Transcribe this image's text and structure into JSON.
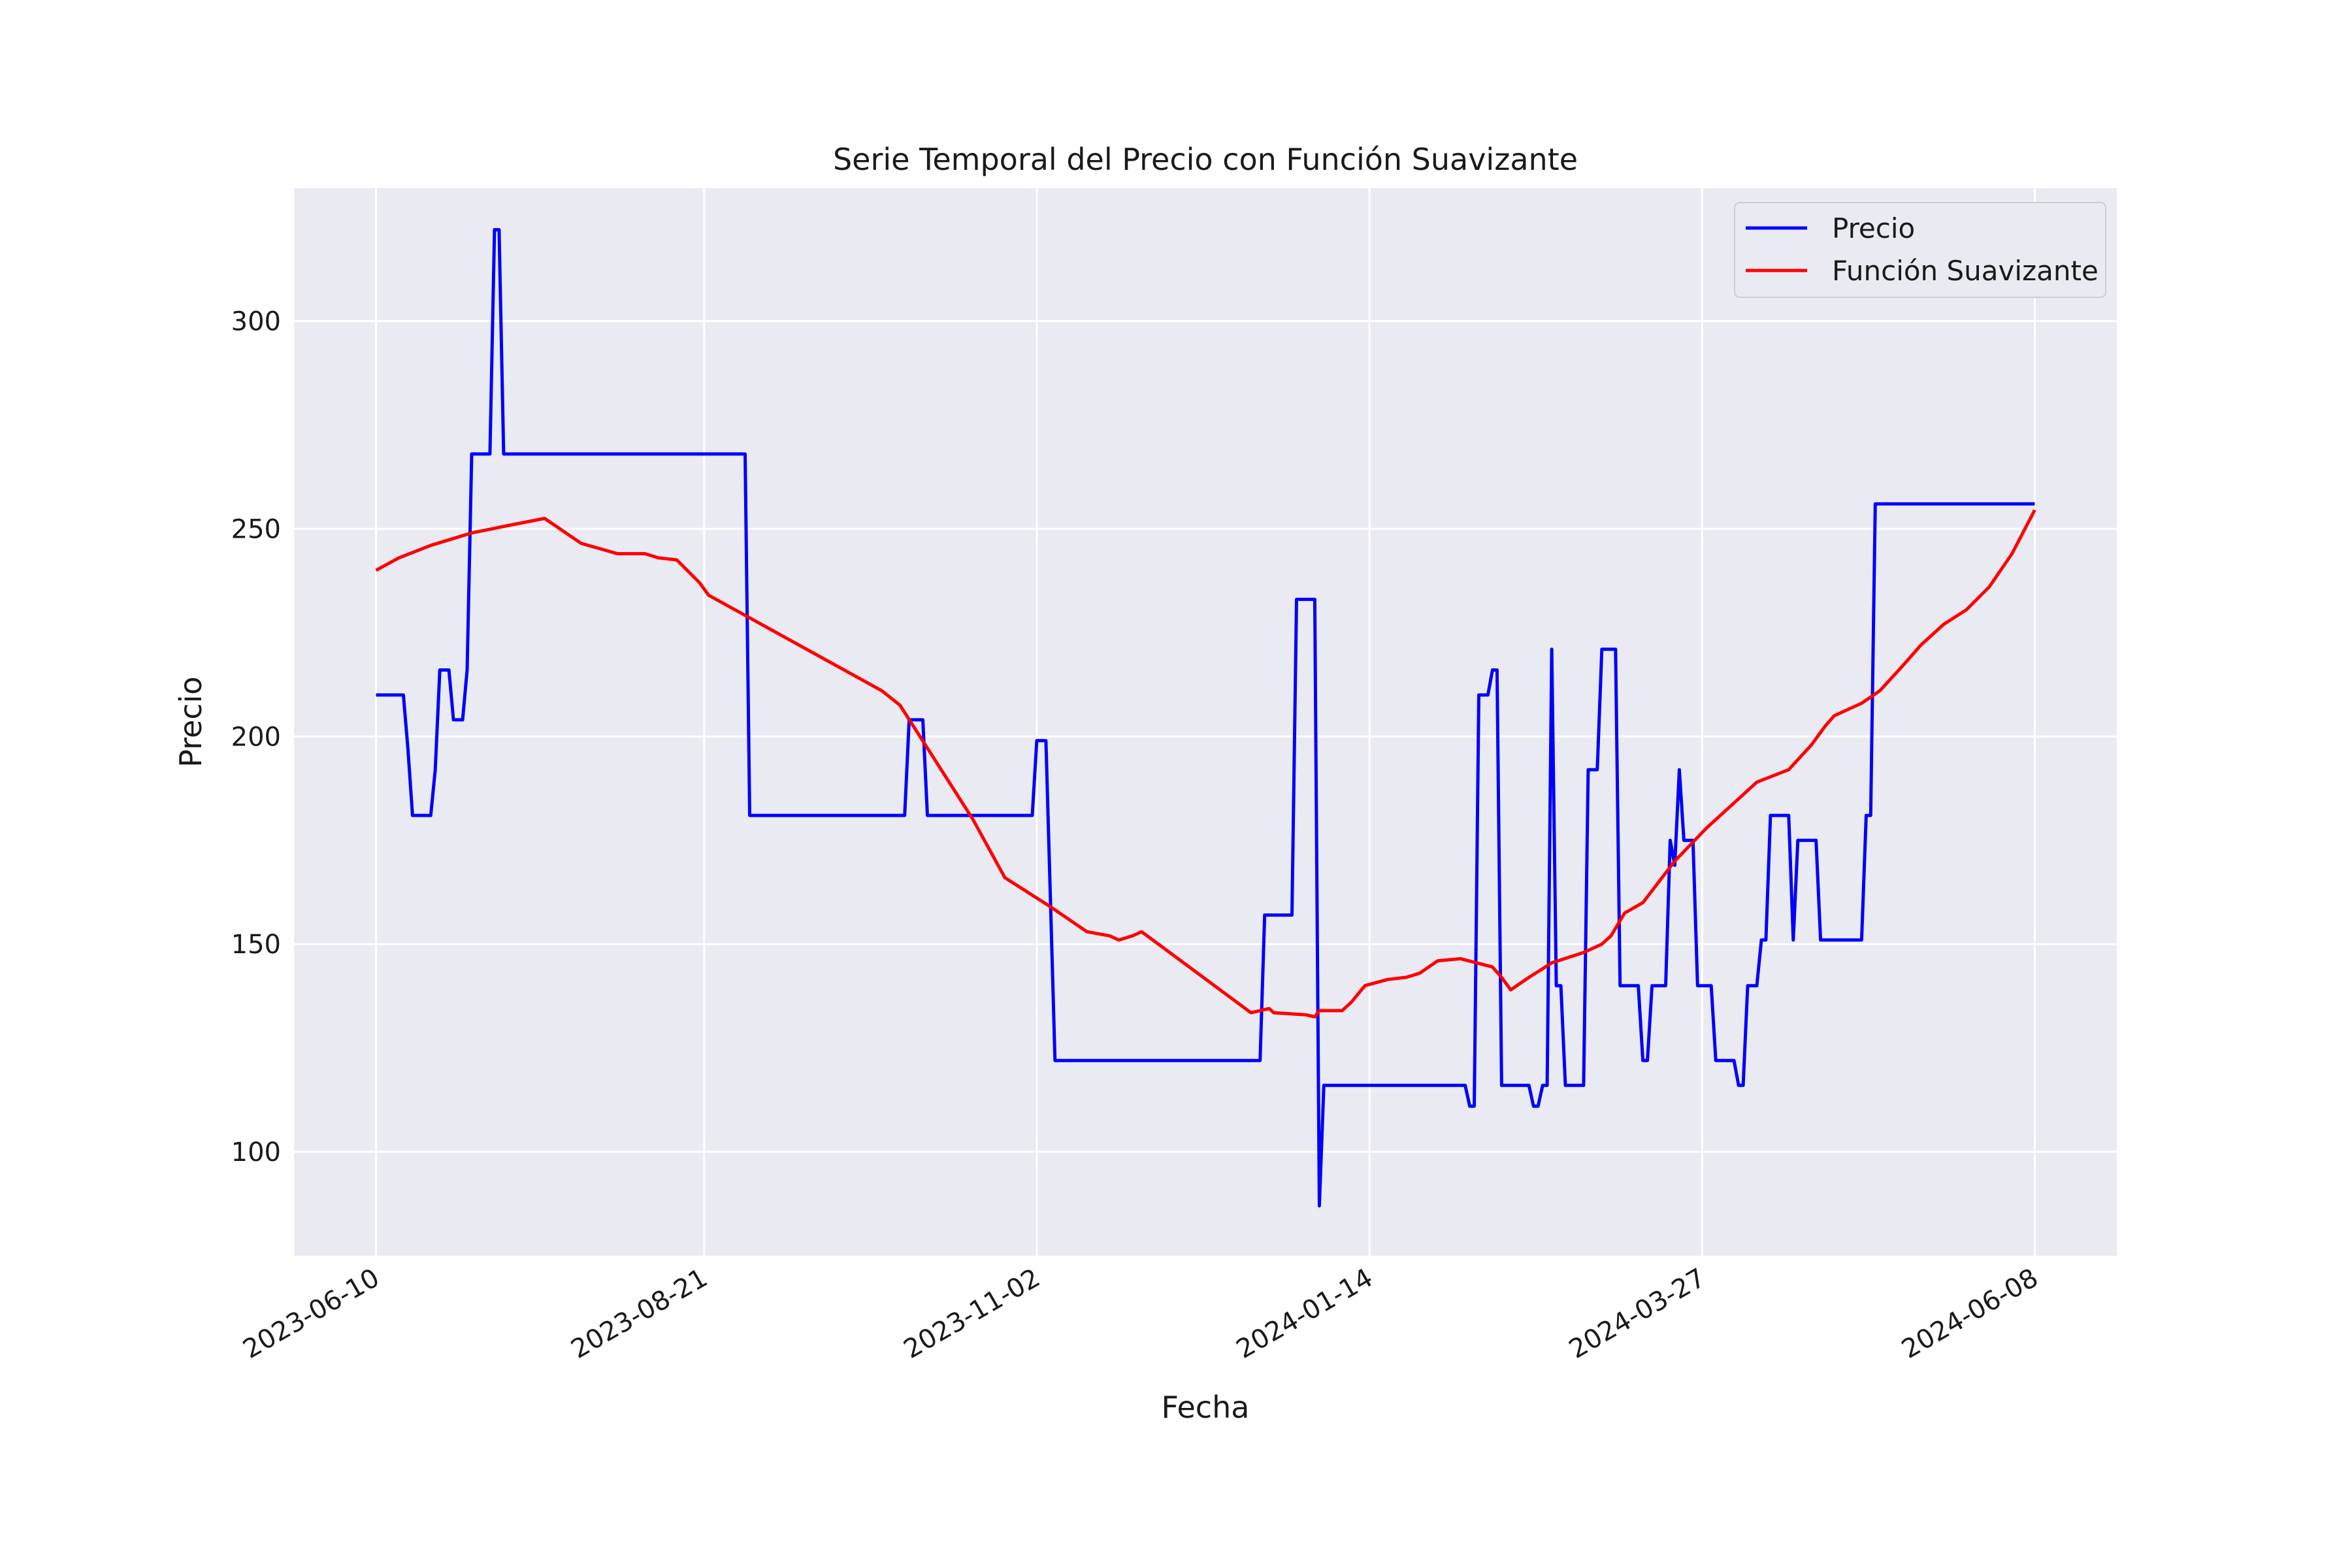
{
  "chart_data": {
    "type": "line",
    "title": "Serie Temporal del Precio con Función Suavizante",
    "xlabel": "Fecha",
    "ylabel": "Precio",
    "x_start": "2023-06-10",
    "x_end": "2024-06-08",
    "xlim": [
      "2023-05-23",
      "2024-06-26"
    ],
    "ylim": [
      75,
      332
    ],
    "x_ticks": [
      "2023-06-10",
      "2023-08-21",
      "2023-11-02",
      "2024-01-14",
      "2024-03-27",
      "2024-06-08"
    ],
    "y_ticks": [
      100,
      150,
      200,
      250,
      300
    ],
    "grid": true,
    "legend_position": "top-right",
    "series": [
      {
        "name": "Precio",
        "color": "#0000ff",
        "points": [
          [
            "2023-06-10",
            210
          ],
          [
            "2023-06-16",
            210
          ],
          [
            "2023-06-17",
            197
          ],
          [
            "2023-06-18",
            181
          ],
          [
            "2023-06-22",
            181
          ],
          [
            "2023-06-23",
            192
          ],
          [
            "2023-06-24",
            216
          ],
          [
            "2023-06-26",
            216
          ],
          [
            "2023-06-27",
            204
          ],
          [
            "2023-06-29",
            204
          ],
          [
            "2023-06-30",
            216
          ],
          [
            "2023-07-01",
            268
          ],
          [
            "2023-07-05",
            268
          ],
          [
            "2023-07-06",
            322
          ],
          [
            "2023-07-07",
            322
          ],
          [
            "2023-07-08",
            268
          ],
          [
            "2023-08-30",
            268
          ],
          [
            "2023-08-31",
            181
          ],
          [
            "2023-10-04",
            181
          ],
          [
            "2023-10-05",
            204
          ],
          [
            "2023-10-08",
            204
          ],
          [
            "2023-10-09",
            181
          ],
          [
            "2023-11-01",
            181
          ],
          [
            "2023-11-02",
            199
          ],
          [
            "2023-11-04",
            199
          ],
          [
            "2023-11-06",
            122
          ],
          [
            "2023-12-21",
            122
          ],
          [
            "2023-12-22",
            157
          ],
          [
            "2023-12-28",
            157
          ],
          [
            "2023-12-29",
            233
          ],
          [
            "2024-01-02",
            233
          ],
          [
            "2024-01-03",
            87
          ],
          [
            "2024-01-04",
            116
          ],
          [
            "2024-02-04",
            116
          ],
          [
            "2024-02-05",
            111
          ],
          [
            "2024-02-06",
            111
          ],
          [
            "2024-02-07",
            210
          ],
          [
            "2024-02-09",
            210
          ],
          [
            "2024-02-10",
            216
          ],
          [
            "2024-02-11",
            216
          ],
          [
            "2024-02-12",
            116
          ],
          [
            "2024-02-18",
            116
          ],
          [
            "2024-02-19",
            111
          ],
          [
            "2024-02-20",
            111
          ],
          [
            "2024-02-21",
            116
          ],
          [
            "2024-02-22",
            116
          ],
          [
            "2024-02-23",
            221
          ],
          [
            "2024-02-24",
            140
          ],
          [
            "2024-02-25",
            140
          ],
          [
            "2024-02-26",
            116
          ],
          [
            "2024-03-01",
            116
          ],
          [
            "2024-03-02",
            192
          ],
          [
            "2024-03-04",
            192
          ],
          [
            "2024-03-05",
            221
          ],
          [
            "2024-03-08",
            221
          ],
          [
            "2024-03-09",
            140
          ],
          [
            "2024-03-13",
            140
          ],
          [
            "2024-03-14",
            122
          ],
          [
            "2024-03-15",
            122
          ],
          [
            "2024-03-16",
            140
          ],
          [
            "2024-03-19",
            140
          ],
          [
            "2024-03-20",
            175
          ],
          [
            "2024-03-21",
            169
          ],
          [
            "2024-03-22",
            192
          ],
          [
            "2024-03-23",
            175
          ],
          [
            "2024-03-25",
            175
          ],
          [
            "2024-03-26",
            140
          ],
          [
            "2024-03-29",
            140
          ],
          [
            "2024-03-30",
            122
          ],
          [
            "2024-04-03",
            122
          ],
          [
            "2024-04-04",
            116
          ],
          [
            "2024-04-05",
            116
          ],
          [
            "2024-04-06",
            140
          ],
          [
            "2024-04-08",
            140
          ],
          [
            "2024-04-09",
            151
          ],
          [
            "2024-04-10",
            151
          ],
          [
            "2024-04-11",
            181
          ],
          [
            "2024-04-15",
            181
          ],
          [
            "2024-04-16",
            151
          ],
          [
            "2024-04-17",
            175
          ],
          [
            "2024-04-21",
            175
          ],
          [
            "2024-04-22",
            151
          ],
          [
            "2024-05-01",
            151
          ],
          [
            "2024-05-02",
            181
          ],
          [
            "2024-05-03",
            181
          ],
          [
            "2024-05-04",
            256
          ],
          [
            "2024-06-08",
            256
          ]
        ]
      },
      {
        "name": "Función Suavizante",
        "color": "#ff0000",
        "points": [
          [
            "2023-06-10",
            240
          ],
          [
            "2023-06-15",
            243
          ],
          [
            "2023-06-22",
            246
          ],
          [
            "2023-07-01",
            249
          ],
          [
            "2023-07-10",
            251
          ],
          [
            "2023-07-17",
            252.5
          ],
          [
            "2023-07-25",
            246.5
          ],
          [
            "2023-08-02",
            244
          ],
          [
            "2023-08-08",
            244
          ],
          [
            "2023-08-11",
            243
          ],
          [
            "2023-08-15",
            242.5
          ],
          [
            "2023-08-20",
            237
          ],
          [
            "2023-08-22",
            234
          ],
          [
            "2023-09-29",
            211
          ],
          [
            "2023-10-03",
            207.5
          ],
          [
            "2023-10-19",
            180
          ],
          [
            "2023-10-26",
            166
          ],
          [
            "2023-11-05",
            159
          ],
          [
            "2023-11-13",
            153
          ],
          [
            "2023-11-18",
            152
          ],
          [
            "2023-11-20",
            151
          ],
          [
            "2023-11-23",
            152
          ],
          [
            "2023-11-25",
            153
          ],
          [
            "2023-12-19",
            133.5
          ],
          [
            "2023-12-23",
            134.5
          ],
          [
            "2023-12-24",
            133.5
          ],
          [
            "2023-12-31",
            133
          ],
          [
            "2024-01-02",
            132.5
          ],
          [
            "2024-01-03",
            134
          ],
          [
            "2024-01-08",
            134
          ],
          [
            "2024-01-10",
            136
          ],
          [
            "2024-01-13",
            140
          ],
          [
            "2024-01-18",
            141.5
          ],
          [
            "2024-01-22",
            142
          ],
          [
            "2024-01-25",
            143
          ],
          [
            "2024-01-29",
            146
          ],
          [
            "2024-02-03",
            146.5
          ],
          [
            "2024-02-10",
            144.5
          ],
          [
            "2024-02-12",
            142
          ],
          [
            "2024-02-14",
            139
          ],
          [
            "2024-02-18",
            142
          ],
          [
            "2024-02-23",
            145.5
          ],
          [
            "2024-03-01",
            148
          ],
          [
            "2024-03-05",
            150
          ],
          [
            "2024-03-07",
            152
          ],
          [
            "2024-03-10",
            157.5
          ],
          [
            "2024-03-14",
            160
          ],
          [
            "2024-03-21",
            170
          ],
          [
            "2024-03-28",
            178
          ],
          [
            "2024-04-01",
            182
          ],
          [
            "2024-04-08",
            189
          ],
          [
            "2024-04-15",
            192
          ],
          [
            "2024-04-20",
            198
          ],
          [
            "2024-04-23",
            202.5
          ],
          [
            "2024-04-25",
            205
          ],
          [
            "2024-05-01",
            208
          ],
          [
            "2024-05-05",
            211
          ],
          [
            "2024-05-10",
            217
          ],
          [
            "2024-05-14",
            222
          ],
          [
            "2024-05-19",
            227
          ],
          [
            "2024-05-24",
            230.5
          ],
          [
            "2024-05-29",
            236
          ],
          [
            "2024-06-03",
            244
          ],
          [
            "2024-06-08",
            254.5
          ]
        ]
      }
    ]
  }
}
